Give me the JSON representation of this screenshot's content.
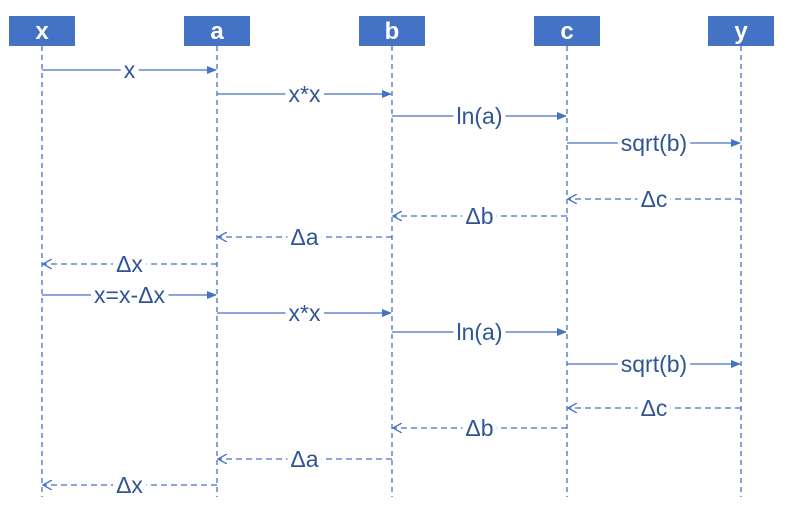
{
  "participants": [
    {
      "id": "x",
      "label": "x"
    },
    {
      "id": "a",
      "label": "a"
    },
    {
      "id": "b",
      "label": "b"
    },
    {
      "id": "c",
      "label": "c"
    },
    {
      "id": "y",
      "label": "y"
    }
  ],
  "messages": [
    {
      "from": "x",
      "to": "a",
      "label": "x",
      "kind": "call"
    },
    {
      "from": "a",
      "to": "b",
      "label": "x*x",
      "kind": "call"
    },
    {
      "from": "b",
      "to": "c",
      "label": "ln(a)",
      "kind": "call"
    },
    {
      "from": "c",
      "to": "y",
      "label": "sqrt(b)",
      "kind": "call"
    },
    {
      "from": "y",
      "to": "c",
      "label": "Δc",
      "kind": "return"
    },
    {
      "from": "c",
      "to": "b",
      "label": "Δb",
      "kind": "return"
    },
    {
      "from": "b",
      "to": "a",
      "label": "Δa",
      "kind": "return"
    },
    {
      "from": "a",
      "to": "x",
      "label": "Δx",
      "kind": "return"
    },
    {
      "from": "x",
      "to": "a",
      "label": "x=x-Δx",
      "kind": "call"
    },
    {
      "from": "a",
      "to": "b",
      "label": "x*x",
      "kind": "call"
    },
    {
      "from": "b",
      "to": "c",
      "label": "ln(a)",
      "kind": "call"
    },
    {
      "from": "c",
      "to": "y",
      "label": "sqrt(b)",
      "kind": "call"
    },
    {
      "from": "y",
      "to": "c",
      "label": "Δc",
      "kind": "return"
    },
    {
      "from": "c",
      "to": "b",
      "label": "Δb",
      "kind": "return"
    },
    {
      "from": "b",
      "to": "a",
      "label": "Δa",
      "kind": "return"
    },
    {
      "from": "a",
      "to": "x",
      "label": "Δx",
      "kind": "return"
    }
  ],
  "colors": {
    "accent": "#4472c4",
    "text": "#2f5597"
  }
}
